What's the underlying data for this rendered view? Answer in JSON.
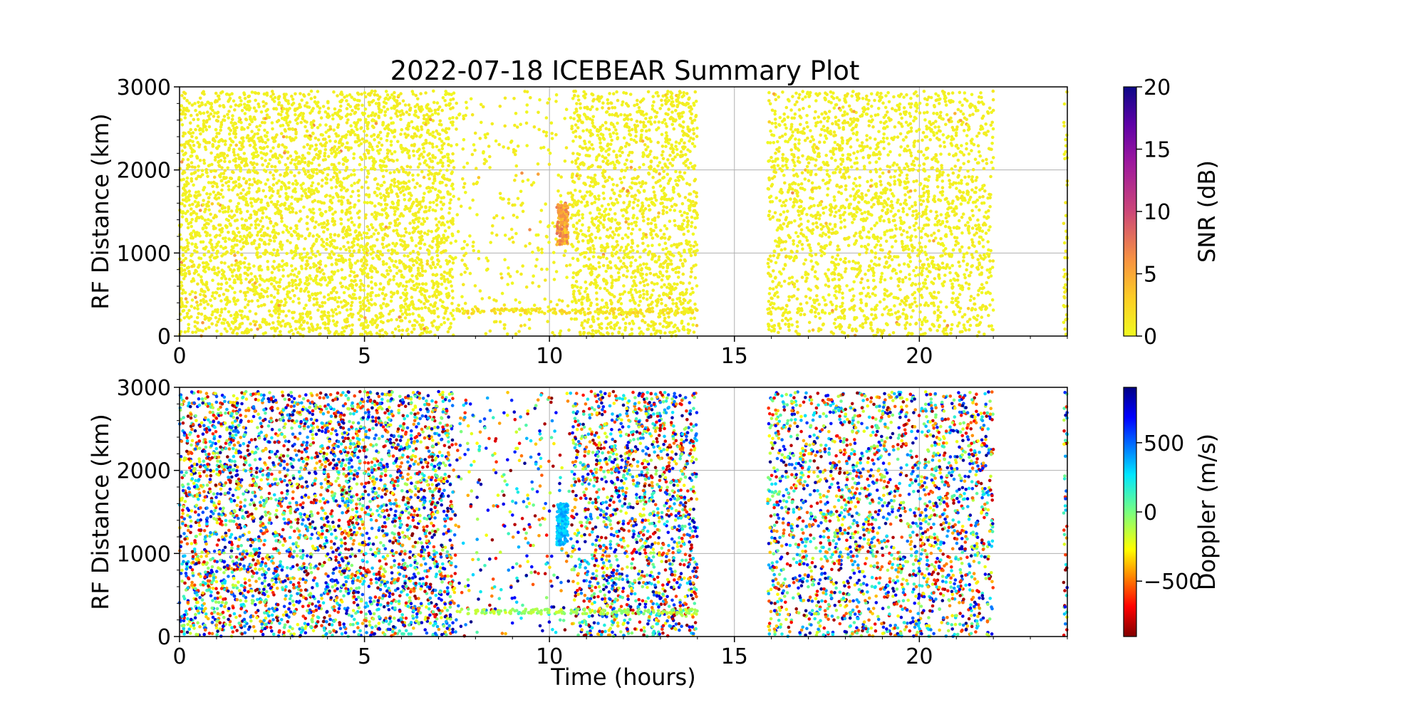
{
  "chart_data": {
    "title": "2022-07-18 ICEBEAR Summary Plot",
    "panels": [
      {
        "type": "scatter",
        "ylabel": "RF Distance (km)",
        "xlabel": "",
        "xlim": [
          0,
          24
        ],
        "ylim": [
          0,
          3000
        ],
        "xticks": [
          "0",
          "5",
          "10",
          "15",
          "20"
        ],
        "xtick_values": [
          0,
          5,
          10,
          15,
          20
        ],
        "yticks": [
          "0",
          "1000",
          "2000",
          "3000"
        ],
        "ytick_values": [
          0,
          1000,
          2000,
          3000
        ],
        "grid": true,
        "color_variable": "snr",
        "colorbar": {
          "label": "SNR (dB)",
          "colormap": "plasma_r",
          "range": [
            0,
            20
          ],
          "ticks": [
            "0",
            "5",
            "10",
            "15",
            "20"
          ],
          "tick_values": [
            0,
            5,
            10,
            15,
            20
          ]
        }
      },
      {
        "type": "scatter",
        "ylabel": "RF Distance (km)",
        "xlabel": "Time (hours)",
        "xlim": [
          0,
          24
        ],
        "ylim": [
          0,
          3000
        ],
        "xticks": [
          "0",
          "5",
          "10",
          "15",
          "20"
        ],
        "xtick_values": [
          0,
          5,
          10,
          15,
          20
        ],
        "yticks": [
          "0",
          "1000",
          "2000",
          "3000"
        ],
        "ytick_values": [
          0,
          1000,
          2000,
          3000
        ],
        "grid": true,
        "color_variable": "doppler",
        "colorbar": {
          "label": "Doppler (m/s)",
          "colormap": "jet_r",
          "range": [
            -900,
            900
          ],
          "ticks": [
            "−500",
            "0",
            "500"
          ],
          "tick_values": [
            -500,
            0,
            500
          ]
        }
      }
    ],
    "data_segments_hours": [
      {
        "start": 0.0,
        "end": 7.4,
        "density": 1.0
      },
      {
        "start": 7.4,
        "end": 10.6,
        "density": 0.18
      },
      {
        "start": 10.6,
        "end": 14.0,
        "density": 0.9
      },
      {
        "start": 15.9,
        "end": 22.0,
        "density": 0.75
      },
      {
        "start": 23.9,
        "end": 24.0,
        "density": 0.9
      }
    ],
    "features": [
      {
        "name": "meteor-trail-echo",
        "time_hours": [
          10.2,
          10.5
        ],
        "range_km": [
          1100,
          1600
        ],
        "snr_db": [
          3,
          8
        ],
        "doppler_ms": [
          250,
          420
        ]
      },
      {
        "name": "horizontal-echo-band",
        "time_hours": [
          7.5,
          14.0
        ],
        "range_km": [
          270,
          330
        ],
        "snr_db": [
          0,
          3
        ],
        "doppler_ms": [
          -200,
          0
        ]
      }
    ]
  }
}
